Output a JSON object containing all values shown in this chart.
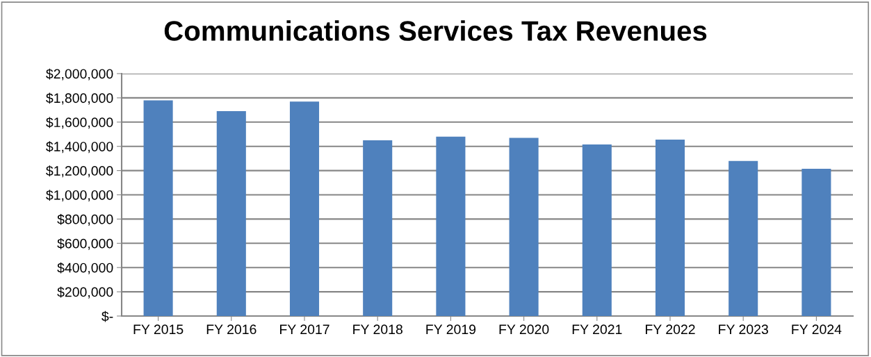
{
  "chart_data": {
    "type": "bar",
    "title": "Communications Services Tax Revenues",
    "categories": [
      "FY 2015",
      "FY 2016",
      "FY 2017",
      "FY 2018",
      "FY 2019",
      "FY 2020",
      "FY 2021",
      "FY 2022",
      "FY 2023",
      "FY 2024"
    ],
    "values": [
      1780000,
      1690000,
      1770000,
      1450000,
      1480000,
      1470000,
      1415000,
      1455000,
      1280000,
      1215000
    ],
    "color": "#4f81bd",
    "ylim": [
      0,
      2000000
    ],
    "yticks": [
      {
        "value": 0,
        "label": "$-"
      },
      {
        "value": 200000,
        "label": "$200,000"
      },
      {
        "value": 400000,
        "label": "$400,000"
      },
      {
        "value": 600000,
        "label": "$600,000"
      },
      {
        "value": 800000,
        "label": "$800,000"
      },
      {
        "value": 1000000,
        "label": "$1,000,000"
      },
      {
        "value": 1200000,
        "label": "$1,200,000"
      },
      {
        "value": 1400000,
        "label": "$1,400,000"
      },
      {
        "value": 1600000,
        "label": "$1,600,000"
      },
      {
        "value": 1800000,
        "label": "$1,800,000"
      },
      {
        "value": 2000000,
        "label": "$2,000,000"
      }
    ],
    "grid": "y",
    "legend": false
  }
}
